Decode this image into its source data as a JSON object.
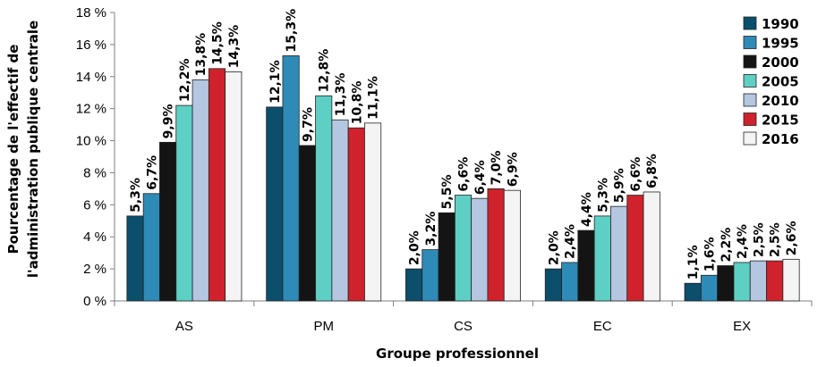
{
  "chart_data": {
    "type": "bar",
    "xlabel": "Groupe professionnel",
    "ylabel": "Pourcentage de l'effectif de l'administration publique centrale",
    "ylabel_lines": [
      "Pourcentage de l'effectif de",
      "l'administration publique centrale"
    ],
    "ylim": [
      0,
      18
    ],
    "yticks": [
      0,
      2,
      4,
      6,
      8,
      10,
      12,
      14,
      16,
      18
    ],
    "ytick_labels": [
      "0 %",
      "2 %",
      "4 %",
      "6 %",
      "8 %",
      "10 %",
      "12 %",
      "14 %",
      "16 %",
      "18 %"
    ],
    "categories": [
      "AS",
      "PM",
      "CS",
      "EC",
      "EX"
    ],
    "grid": false,
    "legend_position": "right",
    "series": [
      {
        "name": "1990",
        "color": "#0b4f6c",
        "values": [
          5.3,
          12.1,
          2.0,
          2.0,
          1.1
        ],
        "labels": [
          "5,3%",
          "12,1%",
          "2,0%",
          "2,0%",
          "1,1%"
        ]
      },
      {
        "name": "1995",
        "color": "#2e8bb8",
        "values": [
          6.7,
          15.3,
          3.2,
          2.4,
          1.6
        ],
        "labels": [
          "6,7%",
          "15,3%",
          "3,2%",
          "2,4%",
          "1,6%"
        ]
      },
      {
        "name": "2000",
        "color": "#141414",
        "values": [
          9.9,
          9.7,
          5.5,
          4.4,
          2.2
        ],
        "labels": [
          "9,9%",
          "9,7%",
          "5,5%",
          "4,4%",
          "2,2%"
        ]
      },
      {
        "name": "2005",
        "color": "#5ecfc4",
        "values": [
          12.2,
          12.8,
          6.6,
          5.3,
          2.4
        ],
        "labels": [
          "12,2%",
          "12,8%",
          "6,6%",
          "5,3%",
          "2,4%"
        ]
      },
      {
        "name": "2010",
        "color": "#b4c6e0",
        "values": [
          13.8,
          11.3,
          6.4,
          5.9,
          2.5
        ],
        "labels": [
          "13,8%",
          "11,3%",
          "6,4%",
          "5,9%",
          "2,5%"
        ]
      },
      {
        "name": "2015",
        "color": "#d0222c",
        "values": [
          14.5,
          10.8,
          7.0,
          6.6,
          2.5
        ],
        "labels": [
          "14,5%",
          "10,8%",
          "7,0%",
          "6,6%",
          "2,5%"
        ]
      },
      {
        "name": "2016",
        "color": "#f4f4f4",
        "values": [
          14.3,
          11.1,
          6.9,
          6.8,
          2.6
        ],
        "labels": [
          "14,3%",
          "11,1%",
          "6,9%",
          "6,8%",
          "2,6%"
        ]
      }
    ]
  }
}
